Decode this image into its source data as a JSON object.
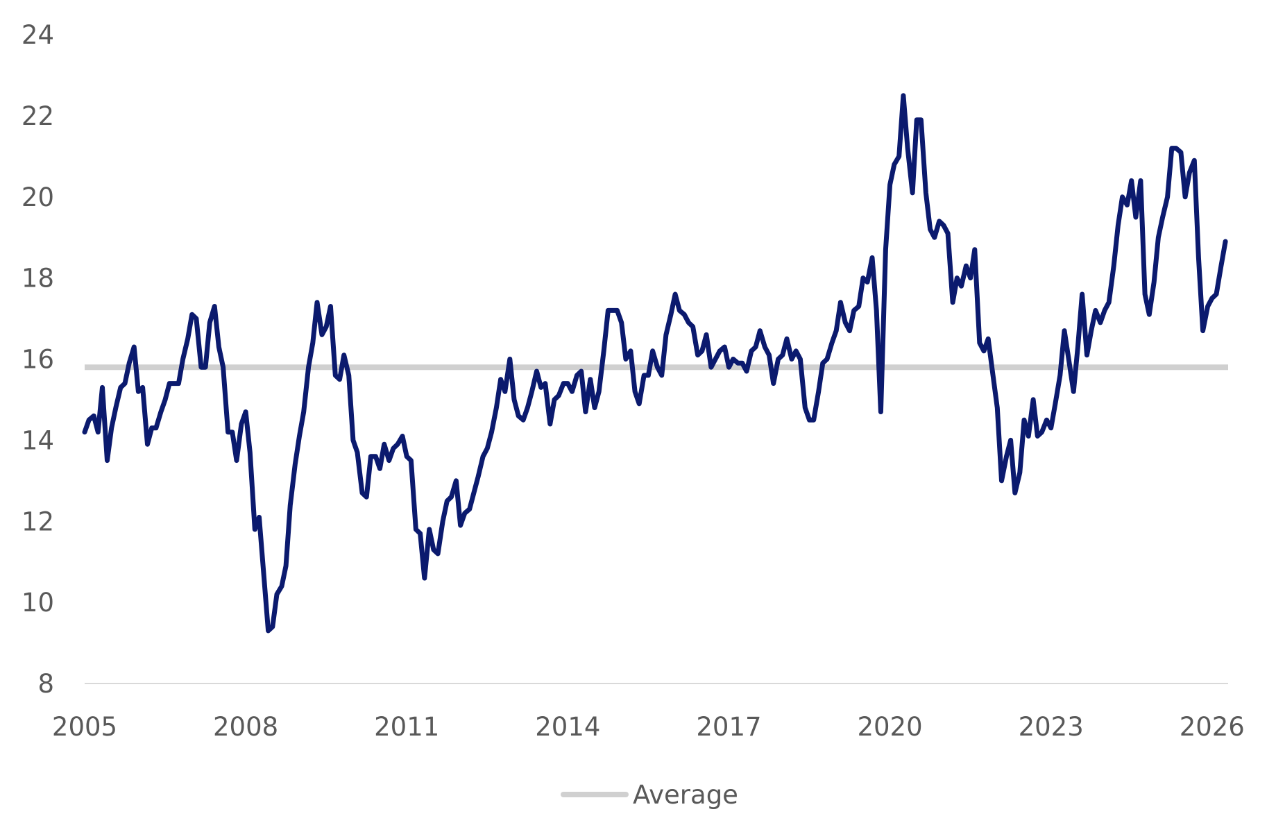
{
  "chart_data": {
    "type": "line",
    "title": "",
    "xlabel": "",
    "ylabel": "",
    "xlim": [
      2005,
      2026.3
    ],
    "ylim": [
      8,
      24
    ],
    "y_ticks": [
      8,
      10,
      12,
      14,
      16,
      18,
      20,
      22,
      24
    ],
    "y_tick_labels": [
      "8",
      "10",
      "12",
      "14",
      "16",
      "18",
      "20",
      "22",
      "24"
    ],
    "x_ticks": [
      2005,
      2008,
      2011,
      2014,
      2017,
      2020,
      2023,
      2026
    ],
    "x_tick_labels": [
      "2005",
      "2008",
      "2011",
      "2014",
      "2017",
      "2020",
      "2023",
      "2026"
    ],
    "grid": false,
    "legend_position": "bottom-center",
    "colors": {
      "series": "#0b1a6e",
      "average": "#d0d0d0",
      "axis": "#d9d9d9",
      "text": "#595959"
    },
    "series": [
      {
        "x": [
          2005.0,
          2005.08,
          2005.17,
          2005.25,
          2005.33,
          2005.42,
          2005.5,
          2005.58,
          2005.67,
          2005.75,
          2005.83,
          2005.92,
          2006.0,
          2006.08,
          2006.17,
          2006.25,
          2006.33,
          2006.42,
          2006.5,
          2006.58,
          2006.67,
          2006.75,
          2006.83,
          2006.92,
          2007.0,
          2007.08,
          2007.17,
          2007.25,
          2007.33,
          2007.42,
          2007.5,
          2007.58,
          2007.67,
          2007.75,
          2007.83,
          2007.92,
          2008.0,
          2008.08,
          2008.17,
          2008.25,
          2008.33,
          2008.42,
          2008.5,
          2008.58,
          2008.67,
          2008.75,
          2008.83,
          2008.92,
          2009.0,
          2009.08,
          2009.17,
          2009.25,
          2009.33,
          2009.42,
          2009.5,
          2009.58,
          2009.67,
          2009.75,
          2009.83,
          2009.92,
          2010.0,
          2010.08,
          2010.17,
          2010.25,
          2010.33,
          2010.42,
          2010.5,
          2010.58,
          2010.67,
          2010.75,
          2010.83,
          2010.92,
          2011.0,
          2011.08,
          2011.17,
          2011.25,
          2011.33,
          2011.42,
          2011.5,
          2011.58,
          2011.67,
          2011.75,
          2011.83,
          2011.92,
          2012.0,
          2012.08,
          2012.17,
          2012.25,
          2012.33,
          2012.42,
          2012.5,
          2012.58,
          2012.67,
          2012.75,
          2012.83,
          2012.92,
          2013.0,
          2013.08,
          2013.17,
          2013.25,
          2013.33,
          2013.42,
          2013.5,
          2013.58,
          2013.67,
          2013.75,
          2013.83,
          2013.92,
          2014.0,
          2014.08,
          2014.17,
          2014.25,
          2014.33,
          2014.42,
          2014.5,
          2014.58,
          2014.67,
          2014.75,
          2014.83,
          2014.92,
          2015.0,
          2015.08,
          2015.17,
          2015.25,
          2015.33,
          2015.42,
          2015.5,
          2015.58,
          2015.67,
          2015.75,
          2015.83,
          2015.92,
          2016.0,
          2016.08,
          2016.17,
          2016.25,
          2016.33,
          2016.42,
          2016.5,
          2016.58,
          2016.67,
          2016.75,
          2016.83,
          2016.92,
          2017.0,
          2017.08,
          2017.17,
          2017.25,
          2017.33,
          2017.42,
          2017.5,
          2017.58,
          2017.67,
          2017.75,
          2017.83,
          2017.92,
          2018.0,
          2018.08,
          2018.17,
          2018.25,
          2018.33,
          2018.42,
          2018.5,
          2018.58,
          2018.67,
          2018.75,
          2018.83,
          2018.92,
          2019.0,
          2019.08,
          2019.17,
          2019.25,
          2019.33,
          2019.42,
          2019.5,
          2019.58,
          2019.67,
          2019.75,
          2019.83,
          2019.92,
          2020.0,
          2020.08,
          2020.17,
          2020.25,
          2020.33,
          2020.42,
          2020.5,
          2020.58,
          2020.67,
          2020.75,
          2020.83,
          2020.92,
          2021.0,
          2021.08,
          2021.17,
          2021.25,
          2021.33,
          2021.42,
          2021.5,
          2021.58,
          2021.67,
          2021.75,
          2021.83,
          2021.92,
          2022.0,
          2022.08,
          2022.17,
          2022.25,
          2022.33,
          2022.42,
          2022.5,
          2022.58,
          2022.67,
          2022.75,
          2022.83,
          2022.92,
          2023.0,
          2023.08,
          2023.17,
          2023.25,
          2023.33,
          2023.42,
          2023.5,
          2023.58,
          2023.67,
          2023.75,
          2023.83,
          2023.92,
          2024.0,
          2024.08,
          2024.17,
          2024.25,
          2024.33,
          2024.42,
          2024.5,
          2024.58,
          2024.67,
          2024.75,
          2024.83,
          2024.92,
          2025.0,
          2025.08,
          2025.17,
          2025.25,
          2025.33,
          2025.42,
          2025.5,
          2025.58,
          2025.67,
          2025.75,
          2025.83,
          2025.92,
          2026.0,
          2026.08,
          2026.17,
          2026.25
        ],
        "y": [
          14.2,
          14.5,
          14.6,
          14.2,
          15.3,
          13.5,
          14.3,
          14.8,
          15.3,
          15.4,
          15.9,
          16.3,
          15.2,
          15.3,
          13.9,
          14.3,
          14.3,
          14.7,
          15.0,
          15.4,
          15.4,
          15.4,
          16.0,
          16.5,
          17.1,
          17.0,
          15.8,
          15.8,
          16.9,
          17.3,
          16.3,
          15.8,
          14.2,
          14.2,
          13.5,
          14.4,
          14.7,
          13.7,
          11.8,
          12.1,
          10.8,
          9.3,
          9.4,
          10.2,
          10.4,
          10.9,
          12.4,
          13.4,
          14.1,
          14.7,
          15.8,
          16.4,
          17.4,
          16.6,
          16.8,
          17.3,
          15.6,
          15.5,
          16.1,
          15.6,
          14.0,
          13.7,
          12.7,
          12.6,
          13.6,
          13.6,
          13.3,
          13.9,
          13.5,
          13.8,
          13.9,
          14.1,
          13.6,
          13.5,
          11.8,
          11.7,
          10.6,
          11.8,
          11.3,
          11.2,
          12.0,
          12.5,
          12.6,
          13.0,
          11.9,
          12.2,
          12.3,
          12.7,
          13.1,
          13.6,
          13.8,
          14.2,
          14.8,
          15.5,
          15.2,
          16.0,
          15.0,
          14.6,
          14.5,
          14.8,
          15.2,
          15.7,
          15.3,
          15.4,
          14.4,
          15.0,
          15.1,
          15.4,
          15.4,
          15.2,
          15.6,
          15.7,
          14.7,
          15.5,
          14.8,
          15.2,
          16.2,
          17.2,
          17.2,
          17.2,
          16.9,
          16.0,
          16.2,
          15.2,
          14.9,
          15.6,
          15.6,
          16.2,
          15.8,
          15.6,
          16.6,
          17.1,
          17.6,
          17.2,
          17.1,
          16.9,
          16.8,
          16.1,
          16.2,
          16.6,
          15.8,
          16.0,
          16.2,
          16.3,
          15.8,
          16.0,
          15.9,
          15.9,
          15.7,
          16.2,
          16.3,
          16.7,
          16.3,
          16.1,
          15.4,
          16.0,
          16.1,
          16.5,
          16.0,
          16.2,
          16.0,
          14.8,
          14.5,
          14.5,
          15.2,
          15.9,
          16.0,
          16.4,
          16.7,
          17.4,
          16.9,
          16.7,
          17.2,
          17.3,
          18.0,
          17.9,
          18.5,
          17.2,
          14.7,
          18.7,
          20.3,
          20.8,
          21.0,
          22.5,
          21.2,
          20.1,
          21.9,
          21.9,
          20.1,
          19.2,
          19.0,
          19.4,
          19.3,
          19.1,
          17.4,
          18.0,
          17.8,
          18.3,
          18.0,
          18.7,
          16.4,
          16.2,
          16.5,
          15.6,
          14.8,
          13.0,
          13.6,
          14.0,
          12.7,
          13.2,
          14.5,
          14.1,
          15.0,
          14.1,
          14.2,
          14.5,
          14.3,
          14.9,
          15.6,
          16.7,
          16.0,
          15.2,
          16.3,
          17.6,
          16.1,
          16.7,
          17.2,
          16.9,
          17.2,
          17.4,
          18.3,
          19.3,
          20.0,
          19.8,
          20.4,
          19.5,
          20.4,
          17.6,
          17.1,
          17.9,
          19.0,
          19.5,
          20.0,
          21.2,
          21.2,
          21.1,
          20.0,
          20.6,
          20.9,
          18.5,
          16.7,
          17.3,
          17.5,
          17.6,
          18.3,
          18.9
        ]
      }
    ],
    "reference_lines": [
      {
        "name": "Average",
        "value": 15.8
      }
    ],
    "legend": [
      {
        "label": "Average",
        "style": "reference_line"
      }
    ]
  }
}
